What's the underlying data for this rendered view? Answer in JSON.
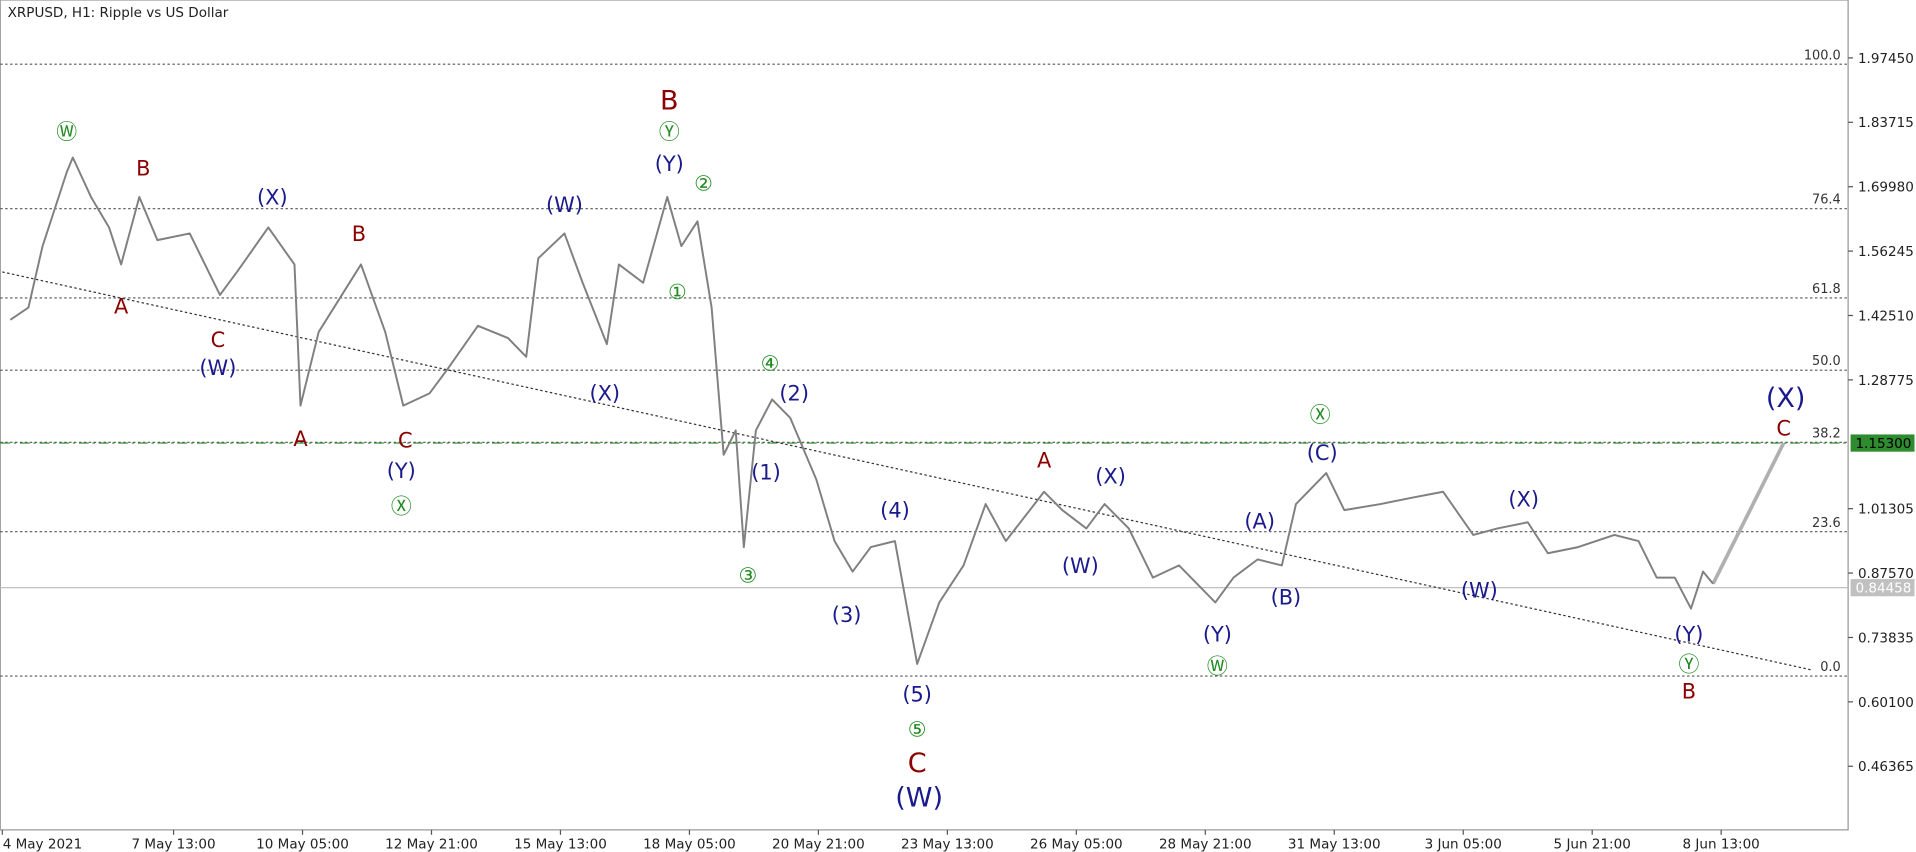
{
  "chart_data": {
    "type": "line",
    "title": "XRPUSD, H1:  Ripple vs US Dollar",
    "color": "#808080",
    "xlim": [
      -1,
      916
    ],
    "ylim": [
      0.328,
      2.098
    ],
    "xticks": [
      {
        "value": 0,
        "label": "4 May 2021"
      },
      {
        "value": 85,
        "label": "7 May 13:00"
      },
      {
        "value": 149,
        "label": "10 May 05:00"
      },
      {
        "value": 213,
        "label": "12 May 21:00"
      },
      {
        "value": 277,
        "label": "15 May 13:00"
      },
      {
        "value": 341,
        "label": "18 May 05:00"
      },
      {
        "value": 405,
        "label": "20 May 21:00"
      },
      {
        "value": 469,
        "label": "23 May 13:00"
      },
      {
        "value": 533,
        "label": "26 May 05:00"
      },
      {
        "value": 597,
        "label": "28 May 21:00"
      },
      {
        "value": 661,
        "label": "31 May 13:00"
      },
      {
        "value": 725,
        "label": "3 Jun 05:00"
      },
      {
        "value": 789,
        "label": "5 Jun 21:00"
      },
      {
        "value": 853,
        "label": "8 Jun 13:00"
      }
    ],
    "yticks": [
      {
        "value": 1.9745,
        "label": "1.97450"
      },
      1.83715,
      {
        "value": 1.6998,
        "label": "1.69980"
      },
      1.56245,
      {
        "value": 1.4251,
        "label": "1.42510"
      },
      1.28775,
      1.01305,
      {
        "value": 0.8757,
        "label": "0.87570"
      },
      0.73835,
      {
        "value": 0.601,
        "label": "0.60100"
      },
      0.46365
    ],
    "x": [
      4,
      13,
      20,
      32,
      35,
      44,
      53,
      59,
      68,
      77,
      93,
      108,
      117,
      132,
      145,
      148,
      157,
      178,
      190,
      199,
      212,
      221,
      236,
      251,
      260,
      266,
      279,
      288,
      300,
      306,
      318,
      330,
      337,
      345,
      352,
      358,
      364,
      368,
      374,
      382,
      391,
      404,
      413,
      422,
      431,
      443,
      454,
      465,
      477,
      488,
      498,
      517,
      526,
      538,
      547,
      559,
      571,
      584,
      602,
      611,
      623,
      635,
      642,
      657,
      666,
      684,
      699,
      715,
      730,
      742,
      757,
      767,
      782,
      800,
      812,
      821,
      830,
      838,
      844,
      849
    ],
    "values": [
      1.416,
      1.442,
      1.573,
      1.731,
      1.762,
      1.678,
      1.613,
      1.534,
      1.678,
      1.586,
      1.6,
      1.469,
      1.521,
      1.613,
      1.534,
      1.233,
      1.39,
      1.534,
      1.39,
      1.233,
      1.259,
      1.311,
      1.403,
      1.377,
      1.337,
      1.547,
      1.6,
      1.495,
      1.364,
      1.534,
      1.495,
      1.678,
      1.573,
      1.626,
      1.442,
      1.128,
      1.18,
      0.931,
      1.18,
      1.246,
      1.207,
      1.075,
      0.944,
      0.879,
      0.931,
      0.944,
      0.682,
      0.813,
      0.892,
      1.023,
      0.944,
      1.049,
      1.01,
      0.971,
      1.023,
      0.971,
      0.866,
      0.892,
      0.813,
      0.866,
      0.905,
      0.892,
      1.023,
      1.089,
      1.01,
      1.023,
      1.036,
      1.049,
      0.957,
      0.971,
      0.984,
      0.918,
      0.931,
      0.957,
      0.944,
      0.866,
      0.866,
      0.8,
      0.879,
      0.853
    ],
    "projection": {
      "x": [
        849,
        884
      ],
      "values": [
        0.853,
        1.153
      ],
      "color": "#b0b0b0"
    },
    "trendline": {
      "x": [
        0,
        898
      ],
      "values": [
        1.518,
        0.669
      ],
      "color": "#333333"
    },
    "fib_levels": [
      {
        "value": 1.961,
        "label": "100.0"
      },
      {
        "value": 1.653,
        "label": "76.4"
      },
      {
        "value": 1.4625,
        "label": "61.8"
      },
      {
        "value": 1.3085,
        "label": "50.0"
      },
      {
        "value": 1.1545,
        "label": "38.2"
      },
      {
        "value": 0.964,
        "label": "23.6"
      },
      {
        "value": 0.656,
        "label": "0.0"
      }
    ],
    "price_lines": [
      {
        "value": 1.153,
        "label": "1.15300",
        "color": "#2e8b2e"
      },
      {
        "value": 0.84458,
        "label": "0.84458",
        "color": "#c0c0c0"
      }
    ],
    "annotations": [
      {
        "text": "Ⓦ",
        "x": 32,
        "y": 1.817,
        "color": "#228b22"
      },
      {
        "text": "B",
        "x": 70,
        "y": 1.739,
        "color": "#8b0000"
      },
      {
        "text": "(X)",
        "x": 134,
        "y": 1.678,
        "color": "#1a1a8c"
      },
      {
        "text": "A",
        "x": 59,
        "y": 1.445,
        "color": "#8b0000"
      },
      {
        "text": "C",
        "x": 107,
        "y": 1.374,
        "color": "#8b0000"
      },
      {
        "text": "(W)",
        "x": 107,
        "y": 1.314,
        "color": "#1a1a8c"
      },
      {
        "text": "B",
        "x": 177,
        "y": 1.6,
        "color": "#8b0000"
      },
      {
        "text": "A",
        "x": 148,
        "y": 1.162,
        "color": "#8b0000"
      },
      {
        "text": "C",
        "x": 200,
        "y": 1.159,
        "color": "#8b0000"
      },
      {
        "text": "(Y)",
        "x": 198,
        "y": 1.094,
        "color": "#1a1a8c"
      },
      {
        "text": "Ⓧ",
        "x": 198,
        "y": 1.018,
        "color": "#228b22"
      },
      {
        "text": "(W)",
        "x": 279,
        "y": 1.662,
        "color": "#1a1a8c"
      },
      {
        "text": "(X)",
        "x": 299,
        "y": 1.259,
        "color": "#1a1a8c"
      },
      {
        "text": "B",
        "x": 331,
        "y": 1.88,
        "color": "#8b0000",
        "size": "large"
      },
      {
        "text": "Ⓨ",
        "x": 331,
        "y": 1.817,
        "color": "#228b22"
      },
      {
        "text": "(Y)",
        "x": 331,
        "y": 1.749,
        "color": "#1a1a8c"
      },
      {
        "text": "②",
        "x": 348,
        "y": 1.707,
        "color": "#228b22"
      },
      {
        "text": "①",
        "x": 335,
        "y": 1.476,
        "color": "#228b22"
      },
      {
        "text": "④",
        "x": 381,
        "y": 1.324,
        "color": "#228b22"
      },
      {
        "text": "(2)",
        "x": 393,
        "y": 1.259,
        "color": "#1a1a8c"
      },
      {
        "text": "(1)",
        "x": 379,
        "y": 1.091,
        "color": "#1a1a8c"
      },
      {
        "text": "③",
        "x": 370,
        "y": 0.871,
        "color": "#228b22"
      },
      {
        "text": "(4)",
        "x": 443,
        "y": 1.01,
        "color": "#1a1a8c"
      },
      {
        "text": "(3)",
        "x": 419,
        "y": 0.787,
        "color": "#1a1a8c"
      },
      {
        "text": "(5)",
        "x": 454,
        "y": 0.617,
        "color": "#1a1a8c"
      },
      {
        "text": "⑤",
        "x": 454,
        "y": 0.543,
        "color": "#228b22"
      },
      {
        "text": "C",
        "x": 454,
        "y": 0.467,
        "color": "#8b0000",
        "size": "large"
      },
      {
        "text": "(W)",
        "x": 455,
        "y": 0.394,
        "color": "#1a1a8c",
        "size": "large"
      },
      {
        "text": "A",
        "x": 517,
        "y": 1.117,
        "color": "#8b0000"
      },
      {
        "text": "(X)",
        "x": 550,
        "y": 1.083,
        "color": "#1a1a8c"
      },
      {
        "text": "(W)",
        "x": 535,
        "y": 0.892,
        "color": "#1a1a8c"
      },
      {
        "text": "(Y)",
        "x": 603,
        "y": 0.745,
        "color": "#1a1a8c"
      },
      {
        "text": "Ⓦ",
        "x": 603,
        "y": 0.677,
        "color": "#228b22"
      },
      {
        "text": "(A)",
        "x": 624,
        "y": 0.986,
        "color": "#1a1a8c"
      },
      {
        "text": "(B)",
        "x": 637,
        "y": 0.824,
        "color": "#1a1a8c"
      },
      {
        "text": "(C)",
        "x": 655,
        "y": 1.133,
        "color": "#1a1a8c"
      },
      {
        "text": "Ⓧ",
        "x": 654,
        "y": 1.214,
        "color": "#228b22"
      },
      {
        "text": "(X)",
        "x": 755,
        "y": 1.033,
        "color": "#1a1a8c"
      },
      {
        "text": "(W)",
        "x": 733,
        "y": 0.839,
        "color": "#1a1a8c"
      },
      {
        "text": "(Y)",
        "x": 837,
        "y": 0.745,
        "color": "#1a1a8c"
      },
      {
        "text": "Ⓨ",
        "x": 837,
        "y": 0.682,
        "color": "#228b22"
      },
      {
        "text": "B",
        "x": 837,
        "y": 0.624,
        "color": "#8b0000"
      },
      {
        "text": "(X)",
        "x": 885,
        "y": 1.246,
        "color": "#1a1a8c",
        "size": "large"
      },
      {
        "text": "C",
        "x": 884,
        "y": 1.185,
        "color": "#8b0000"
      }
    ]
  }
}
